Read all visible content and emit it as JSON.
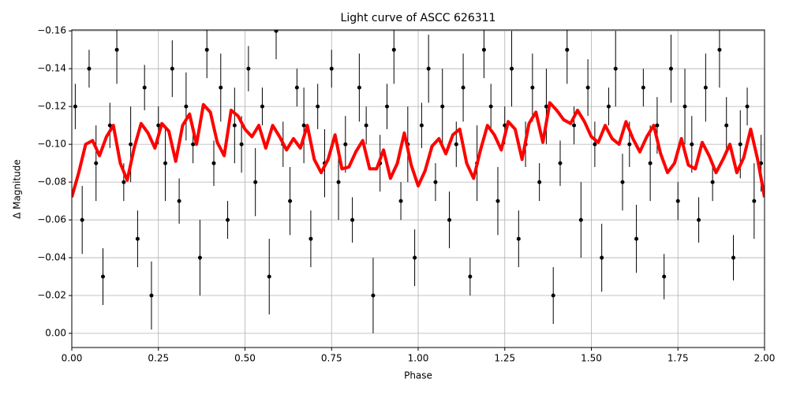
{
  "chart_data": {
    "type": "errorbar-line",
    "title": "Light curve of ASCC 626311",
    "xlabel": "Phase",
    "ylabel": "Δ Magnitude",
    "xlim": [
      0,
      2
    ],
    "ylim": [
      0.0075,
      -0.1605
    ],
    "xticks": [
      {
        "value": 0,
        "label": "0.00"
      },
      {
        "value": 0.25,
        "label": "0.25"
      },
      {
        "value": 0.5,
        "label": "0.50"
      },
      {
        "value": 0.75,
        "label": "0.75"
      },
      {
        "value": 1,
        "label": "1.00"
      },
      {
        "value": 1.25,
        "label": "1.25"
      },
      {
        "value": 1.5,
        "label": "1.50"
      },
      {
        "value": 1.75,
        "label": "1.75"
      },
      {
        "value": 2,
        "label": "2.00"
      }
    ],
    "yticks": [
      {
        "value": 0,
        "label": "0.00"
      },
      {
        "value": -0.02,
        "label": "−0.02"
      },
      {
        "value": -0.04,
        "label": "−0.04"
      },
      {
        "value": -0.06,
        "label": "−0.06"
      },
      {
        "value": -0.08,
        "label": "−0.08"
      },
      {
        "value": -0.1,
        "label": "−0.10"
      },
      {
        "value": -0.12,
        "label": "−0.12"
      },
      {
        "value": -0.14,
        "label": "−0.14"
      },
      {
        "value": -0.16,
        "label": "−0.16"
      }
    ],
    "grid": true,
    "series": [
      {
        "kind": "errorbar",
        "color": "#000000",
        "x": [
          0.01,
          0.03,
          0.05,
          0.07,
          0.09,
          0.11,
          0.13,
          0.15,
          0.17,
          0.19,
          0.21,
          0.23,
          0.25,
          0.27,
          0.29,
          0.31,
          0.33,
          0.35,
          0.37,
          0.39,
          0.41,
          0.43,
          0.45,
          0.47,
          0.49,
          0.51,
          0.53,
          0.55,
          0.57,
          0.59,
          0.61,
          0.63,
          0.65,
          0.67,
          0.69,
          0.71,
          0.73,
          0.75,
          0.77,
          0.79,
          0.81,
          0.83,
          0.85,
          0.87,
          0.89,
          0.91,
          0.93,
          0.95,
          0.97,
          0.99,
          1.01,
          1.03,
          1.05,
          1.07,
          1.09,
          1.11,
          1.13,
          1.15,
          1.17,
          1.19,
          1.21,
          1.23,
          1.25,
          1.27,
          1.29,
          1.31,
          1.33,
          1.35,
          1.37,
          1.39,
          1.41,
          1.43,
          1.45,
          1.47,
          1.49,
          1.51,
          1.53,
          1.55,
          1.57,
          1.59,
          1.61,
          1.63,
          1.65,
          1.67,
          1.69,
          1.71,
          1.73,
          1.75,
          1.77,
          1.79,
          1.81,
          1.83,
          1.85,
          1.87,
          1.89,
          1.91,
          1.93,
          1.95,
          1.97,
          1.99
        ],
        "values": [
          -0.12,
          -0.06,
          -0.14,
          -0.09,
          -0.03,
          -0.11,
          -0.15,
          -0.08,
          -0.1,
          -0.05,
          -0.13,
          -0.02,
          -0.11,
          -0.09,
          -0.14,
          -0.07,
          -0.12,
          -0.1,
          -0.04,
          -0.15,
          -0.09,
          -0.13,
          -0.06,
          -0.11,
          -0.1,
          -0.14,
          -0.08,
          -0.12,
          -0.03,
          -0.16,
          -0.1,
          -0.07,
          -0.13,
          -0.11,
          -0.05,
          -0.12,
          -0.09,
          -0.14,
          -0.08,
          -0.1,
          -0.06,
          -0.13,
          -0.11,
          -0.02,
          -0.09,
          -0.12,
          -0.15,
          -0.07,
          -0.1,
          -0.04,
          -0.11,
          -0.14,
          -0.08,
          -0.12,
          -0.06,
          -0.1,
          -0.13,
          -0.03,
          -0.09,
          -0.15,
          -0.12,
          -0.07,
          -0.11,
          -0.14,
          -0.05,
          -0.1,
          -0.13,
          -0.08,
          -0.12,
          -0.02,
          -0.09,
          -0.15,
          -0.11,
          -0.06,
          -0.13,
          -0.1,
          -0.04,
          -0.12,
          -0.14,
          -0.08,
          -0.1,
          -0.05,
          -0.13,
          -0.09,
          -0.11,
          -0.03,
          -0.14,
          -0.07,
          -0.12,
          -0.1,
          -0.06,
          -0.13,
          -0.08,
          -0.15,
          -0.11,
          -0.04,
          -0.1,
          -0.12,
          -0.07,
          -0.09
        ],
        "errors": [
          0.012,
          0.018,
          0.01,
          0.02,
          0.015,
          0.012,
          0.018,
          0.01,
          0.02,
          0.015,
          0.012,
          0.018,
          0.01,
          0.02,
          0.015,
          0.012,
          0.018,
          0.01,
          0.02,
          0.015,
          0.012,
          0.018,
          0.01,
          0.02,
          0.015,
          0.012,
          0.018,
          0.01,
          0.02,
          0.015,
          0.012,
          0.018,
          0.01,
          0.02,
          0.015,
          0.012,
          0.018,
          0.01,
          0.02,
          0.015,
          0.012,
          0.018,
          0.01,
          0.02,
          0.015,
          0.012,
          0.018,
          0.01,
          0.02,
          0.015,
          0.012,
          0.018,
          0.01,
          0.02,
          0.015,
          0.012,
          0.018,
          0.01,
          0.02,
          0.015,
          0.012,
          0.018,
          0.01,
          0.02,
          0.015,
          0.012,
          0.018,
          0.01,
          0.02,
          0.015,
          0.012,
          0.018,
          0.01,
          0.02,
          0.015,
          0.012,
          0.018,
          0.01,
          0.02,
          0.015,
          0.012,
          0.018,
          0.01,
          0.02,
          0.015,
          0.012,
          0.018,
          0.01,
          0.02,
          0.015,
          0.012,
          0.018,
          0.01,
          0.02,
          0.015,
          0.012,
          0.018,
          0.01,
          0.02,
          0.015
        ]
      },
      {
        "kind": "line",
        "color": "#ff0000",
        "x": [
          0,
          0.02,
          0.04,
          0.06,
          0.08,
          0.1,
          0.12,
          0.14,
          0.16,
          0.18,
          0.2,
          0.22,
          0.24,
          0.26,
          0.28,
          0.3,
          0.32,
          0.34,
          0.36,
          0.38,
          0.4,
          0.42,
          0.44,
          0.46,
          0.48,
          0.5,
          0.52,
          0.54,
          0.56,
          0.58,
          0.6,
          0.62,
          0.64,
          0.66,
          0.68,
          0.7,
          0.72,
          0.74,
          0.76,
          0.78,
          0.8,
          0.82,
          0.84,
          0.86,
          0.88,
          0.9,
          0.92,
          0.94,
          0.96,
          0.98,
          1,
          1.02,
          1.04,
          1.06,
          1.08,
          1.1,
          1.12,
          1.14,
          1.16,
          1.18,
          1.2,
          1.22,
          1.24,
          1.26,
          1.28,
          1.3,
          1.32,
          1.34,
          1.36,
          1.38,
          1.4,
          1.42,
          1.44,
          1.46,
          1.48,
          1.5,
          1.52,
          1.54,
          1.56,
          1.58,
          1.6,
          1.62,
          1.64,
          1.66,
          1.68,
          1.7,
          1.72,
          1.74,
          1.76,
          1.78,
          1.8,
          1.82,
          1.84,
          1.86,
          1.88,
          1.9,
          1.92,
          1.94,
          1.96,
          1.98,
          2
        ],
        "values": [
          -0.072,
          -0.085,
          -0.1,
          -0.102,
          -0.094,
          -0.104,
          -0.11,
          -0.09,
          -0.081,
          -0.098,
          -0.111,
          -0.106,
          -0.098,
          -0.111,
          -0.107,
          -0.091,
          -0.11,
          -0.116,
          -0.1,
          -0.121,
          -0.117,
          -0.101,
          -0.094,
          -0.118,
          -0.115,
          -0.108,
          -0.104,
          -0.11,
          -0.098,
          -0.11,
          -0.104,
          -0.097,
          -0.103,
          -0.098,
          -0.11,
          -0.092,
          -0.085,
          -0.092,
          -0.105,
          -0.087,
          -0.088,
          -0.096,
          -0.102,
          -0.087,
          -0.087,
          -0.097,
          -0.082,
          -0.09,
          -0.106,
          -0.089,
          -0.078,
          -0.086,
          -0.099,
          -0.103,
          -0.095,
          -0.105,
          -0.108,
          -0.09,
          -0.082,
          -0.097,
          -0.11,
          -0.105,
          -0.097,
          -0.112,
          -0.108,
          -0.092,
          -0.111,
          -0.117,
          -0.101,
          -0.122,
          -0.118,
          -0.113,
          -0.111,
          -0.118,
          -0.112,
          -0.104,
          -0.101,
          -0.11,
          -0.103,
          -0.1,
          -0.112,
          -0.103,
          -0.096,
          -0.104,
          -0.11,
          -0.095,
          -0.085,
          -0.09,
          -0.103,
          -0.089,
          -0.087,
          -0.101,
          -0.094,
          -0.085,
          -0.092,
          -0.1,
          -0.085,
          -0.093,
          -0.108,
          -0.092,
          -0.072
        ]
      }
    ]
  }
}
